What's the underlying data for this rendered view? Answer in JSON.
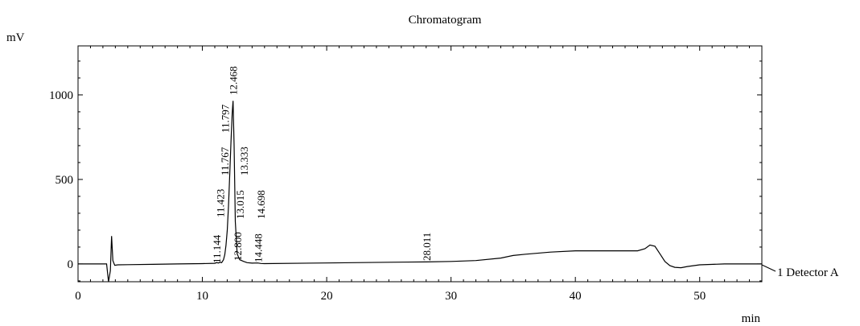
{
  "chart_data": {
    "type": "line",
    "title": "Chromatogram",
    "ylabel": "mV",
    "xlabel": "min",
    "xlim": [
      0,
      55
    ],
    "ylim": [
      -105,
      1290
    ],
    "x_ticks": [
      0,
      10,
      20,
      30,
      40,
      50
    ],
    "y_ticks": [
      0,
      500,
      1000
    ],
    "grid": false,
    "series": [
      {
        "name": "1 Detector A",
        "x": [
          0,
          2.3,
          2.45,
          2.6,
          2.7,
          2.8,
          2.95,
          3.2,
          4,
          6,
          8,
          10,
          11.0,
          11.14,
          11.3,
          11.42,
          11.55,
          11.7,
          11.8,
          11.9,
          12.0,
          12.1,
          12.2,
          12.3,
          12.4,
          12.47,
          12.55,
          12.65,
          12.8,
          13.0,
          13.33,
          13.6,
          14.0,
          14.45,
          14.7,
          15,
          20,
          25,
          28.0,
          30,
          32,
          34,
          35,
          36,
          38,
          40,
          42,
          44,
          45,
          45.6,
          46.0,
          46.4,
          46.8,
          47.2,
          47.6,
          48.0,
          48.5,
          49,
          50,
          52,
          54,
          55
        ],
        "y": [
          0,
          0,
          -105,
          -40,
          165,
          20,
          -8,
          -5,
          -4,
          -2,
          0,
          2,
          4,
          8,
          6,
          10,
          8,
          25,
          55,
          110,
          200,
          340,
          520,
          720,
          890,
          965,
          700,
          250,
          60,
          25,
          15,
          8,
          5,
          6,
          3,
          2,
          6,
          10,
          12,
          15,
          20,
          35,
          50,
          58,
          70,
          78,
          78,
          78,
          78,
          90,
          112,
          105,
          60,
          15,
          -10,
          -20,
          -22,
          -15,
          -5,
          0,
          0,
          0
        ]
      }
    ],
    "peak_labels": [
      {
        "x": 11.144,
        "label": "11.144"
      },
      {
        "x": 11.423,
        "label": "11.423"
      },
      {
        "x": 11.767,
        "label": "11.767"
      },
      {
        "x": 11.797,
        "label": "11.797"
      },
      {
        "x": 12.468,
        "label": "12.468"
      },
      {
        "x": 12.8,
        "label": "12.800"
      },
      {
        "x": 13.015,
        "label": "13.015"
      },
      {
        "x": 13.333,
        "label": "13.333"
      },
      {
        "x": 14.448,
        "label": "14.448"
      },
      {
        "x": 14.698,
        "label": "14.698"
      },
      {
        "x": 28.011,
        "label": "28.011"
      }
    ]
  }
}
